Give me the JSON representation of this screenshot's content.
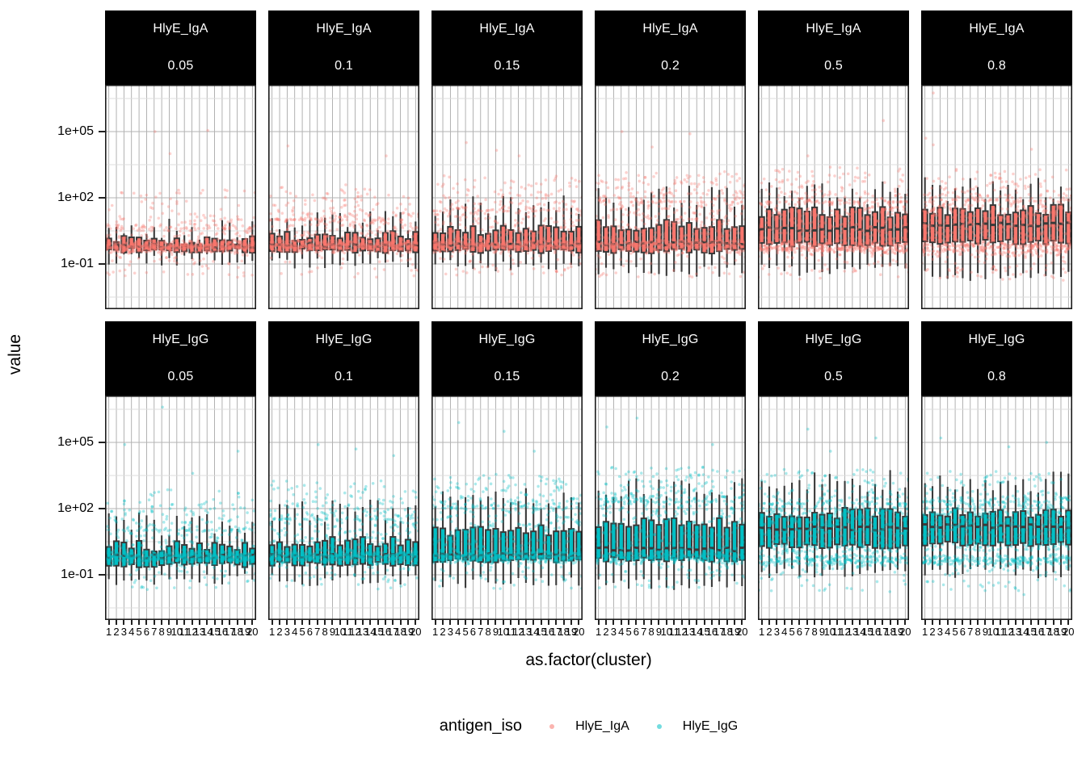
{
  "y_axis": {
    "title": "value",
    "scale": "log10",
    "ticks": [
      {
        "label": "1e+05",
        "log10": 5
      },
      {
        "label": "1e+02",
        "log10": 2
      },
      {
        "label": "1e-01",
        "log10": -1
      }
    ]
  },
  "x_axis": {
    "title": "as.factor(cluster)",
    "tick_labels": [
      "1",
      "2",
      "3",
      "4",
      "5",
      "6",
      "7",
      "8",
      "9",
      "10",
      "11",
      "12",
      "13",
      "14",
      "15",
      "16",
      "17",
      "18",
      "19",
      "20"
    ]
  },
  "legend": {
    "title": "antigen_iso",
    "items": [
      {
        "label": "HlyE_IgA",
        "color": "#F8766D"
      },
      {
        "label": "HlyE_IgG",
        "color": "#00BFC4"
      }
    ]
  },
  "chart_data": {
    "type": "boxplot+jitter faceted small multiples",
    "facet_rows": [
      "HlyE_IgA",
      "HlyE_IgG"
    ],
    "facet_cols": [
      "0.05",
      "0.1",
      "0.15",
      "0.2",
      "0.5",
      "0.8"
    ],
    "strip_background": "#000000",
    "strip_text_color": "#ffffff",
    "box_outline_color": "#3a3a3a",
    "panel_border_color": "#1c1c1c",
    "gridline_major_color": "#b3b3b3",
    "gridline_minor_color": "#dcdcdc",
    "gridline_vertical_color": "#9f9f9f",
    "series_colors": {
      "HlyE_IgA": "#F8766D",
      "HlyE_IgG": "#00BFC4"
    },
    "x_categories": [
      1,
      2,
      3,
      4,
      5,
      6,
      7,
      8,
      9,
      10,
      11,
      12,
      13,
      14,
      15,
      16,
      17,
      18,
      19,
      20
    ],
    "y_domain_log10": [
      -3.05,
      7.12
    ],
    "y_major_breaks_log10": [
      5,
      2,
      -1
    ],
    "y_minor_breaks_log10": [
      6.5,
      3.5,
      0.5,
      -2.5
    ],
    "n_per_cluster": 45,
    "facets": [
      {
        "row": "HlyE_IgA",
        "col": "0.05",
        "box": {
          "q1": -0.38,
          "median": -0.18,
          "q3": 0.02,
          "whisker_lo": -0.8,
          "whisker_hi": 0.5
        },
        "points": {
          "band_center": -0.2,
          "band_sd": 0.16,
          "band_frac": 0.62,
          "mid_lo": -0.5,
          "mid_hi": 0.6,
          "mid_frac": 0.2,
          "tail_max": 2.4
        },
        "outliers": [
          [
            7,
            5.0
          ],
          [
            14,
            5.05
          ],
          [
            9,
            4.0
          ]
        ]
      },
      {
        "row": "HlyE_IgA",
        "col": "0.1",
        "box": {
          "q1": -0.4,
          "median": -0.13,
          "q3": 0.28,
          "whisker_lo": -0.95,
          "whisker_hi": 1.0
        },
        "points": {
          "band_center": -0.18,
          "band_sd": 0.16,
          "band_frac": 0.58,
          "mid_lo": -0.5,
          "mid_hi": 1.0,
          "mid_frac": 0.2,
          "tail_max": 2.6
        },
        "outliers": [
          [
            3,
            4.35
          ],
          [
            16,
            3.9
          ]
        ]
      },
      {
        "row": "HlyE_IgA",
        "col": "0.15",
        "box": {
          "q1": -0.4,
          "median": -0.12,
          "q3": 0.55,
          "whisker_lo": -1.1,
          "whisker_hi": 1.7
        },
        "points": {
          "band_center": -0.16,
          "band_sd": 0.17,
          "band_frac": 0.52,
          "mid_lo": -0.5,
          "mid_hi": 1.4,
          "mid_frac": 0.26,
          "tail_max": 3.0
        },
        "outliers": [
          [
            5,
            4.5
          ],
          [
            9,
            4.15
          ],
          [
            12,
            3.9
          ]
        ]
      },
      {
        "row": "HlyE_IgA",
        "col": "0.2",
        "box": {
          "q1": -0.42,
          "median": -0.08,
          "q3": 0.75,
          "whisker_lo": -1.3,
          "whisker_hi": 2.0
        },
        "points": {
          "band_center": -0.14,
          "band_sd": 0.17,
          "band_frac": 0.48,
          "mid_lo": -0.5,
          "mid_hi": 1.8,
          "mid_frac": 0.3,
          "tail_max": 3.2
        },
        "outliers": [
          [
            4,
            5.0
          ],
          [
            13,
            4.9
          ],
          [
            8,
            4.3
          ]
        ]
      },
      {
        "row": "HlyE_IgA",
        "col": "0.5",
        "box": {
          "q1": -0.1,
          "median": 0.58,
          "q3": 1.35,
          "whisker_lo": -1.3,
          "whisker_hi": 2.2
        },
        "points": {
          "band_center": -0.25,
          "band_sd": 0.2,
          "band_frac": 0.35,
          "mid_lo": -0.4,
          "mid_hi": 1.8,
          "mid_frac": 0.45,
          "tail_max": 3.4
        },
        "outliers": [
          [
            17,
            5.5
          ],
          [
            7,
            3.9
          ]
        ]
      },
      {
        "row": "HlyE_IgA",
        "col": "0.8",
        "box": {
          "q1": 0.0,
          "median": 0.8,
          "q3": 1.45,
          "whisker_lo": -1.5,
          "whisker_hi": 2.4
        },
        "points": {
          "band_center": -0.3,
          "band_sd": 0.2,
          "band_frac": 0.3,
          "mid_lo": -0.2,
          "mid_hi": 1.9,
          "mid_frac": 0.5,
          "tail_max": 3.3
        },
        "outliers": [
          [
            2,
            6.75
          ],
          [
            1,
            4.7
          ],
          [
            2,
            4.4
          ],
          [
            15,
            4.2
          ]
        ]
      },
      {
        "row": "HlyE_IgG",
        "col": "0.05",
        "box": {
          "q1": -0.55,
          "median": -0.18,
          "q3": 0.3,
          "whisker_lo": -1.2,
          "whisker_hi": 1.3
        },
        "points": {
          "band_center": -0.22,
          "band_sd": 0.18,
          "band_frac": 0.6,
          "mid_lo": -0.6,
          "mid_hi": 1.0,
          "mid_frac": 0.2,
          "tail_max": 2.9
        },
        "outliers": [
          [
            8,
            6.6
          ],
          [
            3,
            4.9
          ],
          [
            18,
            4.6
          ],
          [
            12,
            3.6
          ]
        ]
      },
      {
        "row": "HlyE_IgG",
        "col": "0.1",
        "box": {
          "q1": -0.5,
          "median": -0.15,
          "q3": 0.5,
          "whisker_lo": -1.25,
          "whisker_hi": 1.9
        },
        "points": {
          "band_center": -0.2,
          "band_sd": 0.18,
          "band_frac": 0.55,
          "mid_lo": -0.6,
          "mid_hi": 1.5,
          "mid_frac": 0.23,
          "tail_max": 3.3
        },
        "outliers": [
          [
            7,
            4.9
          ],
          [
            12,
            4.7
          ],
          [
            17,
            4.4
          ]
        ]
      },
      {
        "row": "HlyE_IgG",
        "col": "0.15",
        "box": {
          "q1": -0.35,
          "median": -0.12,
          "q3": 1.0,
          "whisker_lo": -1.35,
          "whisker_hi": 2.5
        },
        "points": {
          "band_center": -0.18,
          "band_sd": 0.18,
          "band_frac": 0.5,
          "mid_lo": -0.5,
          "mid_hi": 2.0,
          "mid_frac": 0.27,
          "tail_max": 3.6
        },
        "outliers": [
          [
            4,
            5.9
          ],
          [
            10,
            5.5
          ],
          [
            14,
            4.6
          ]
        ]
      },
      {
        "row": "HlyE_IgG",
        "col": "0.2",
        "box": {
          "q1": -0.3,
          "median": 0.15,
          "q3": 1.35,
          "whisker_lo": -1.45,
          "whisker_hi": 2.9
        },
        "points": {
          "band_center": -0.2,
          "band_sd": 0.2,
          "band_frac": 0.42,
          "mid_lo": -0.4,
          "mid_hi": 2.3,
          "mid_frac": 0.33,
          "tail_max": 3.9
        },
        "outliers": [
          [
            6,
            6.1
          ],
          [
            2,
            5.7
          ],
          [
            16,
            4.9
          ]
        ]
      },
      {
        "row": "HlyE_IgG",
        "col": "0.5",
        "box": {
          "q1": 0.3,
          "median": 1.1,
          "q3": 1.8,
          "whisker_lo": -1.0,
          "whisker_hi": 3.2
        },
        "points": {
          "band_center": -0.35,
          "band_sd": 0.18,
          "band_frac": 0.3,
          "mid_lo": 0.0,
          "mid_hi": 2.2,
          "mid_frac": 0.48,
          "tail_max": 3.8
        },
        "outliers": [
          [
            7,
            5.6
          ],
          [
            16,
            5.2
          ],
          [
            10,
            4.6
          ]
        ]
      },
      {
        "row": "HlyE_IgG",
        "col": "0.8",
        "box": {
          "q1": 0.4,
          "median": 1.2,
          "q3": 1.85,
          "whisker_lo": -0.9,
          "whisker_hi": 3.2
        },
        "points": {
          "band_center": -0.33,
          "band_sd": 0.18,
          "band_frac": 0.28,
          "mid_lo": 0.1,
          "mid_hi": 2.3,
          "mid_frac": 0.5,
          "tail_max": 3.7
        },
        "outliers": [
          [
            3,
            5.2
          ],
          [
            17,
            5.0
          ],
          [
            12,
            4.8
          ],
          [
            14,
            -1.9
          ]
        ]
      }
    ]
  }
}
